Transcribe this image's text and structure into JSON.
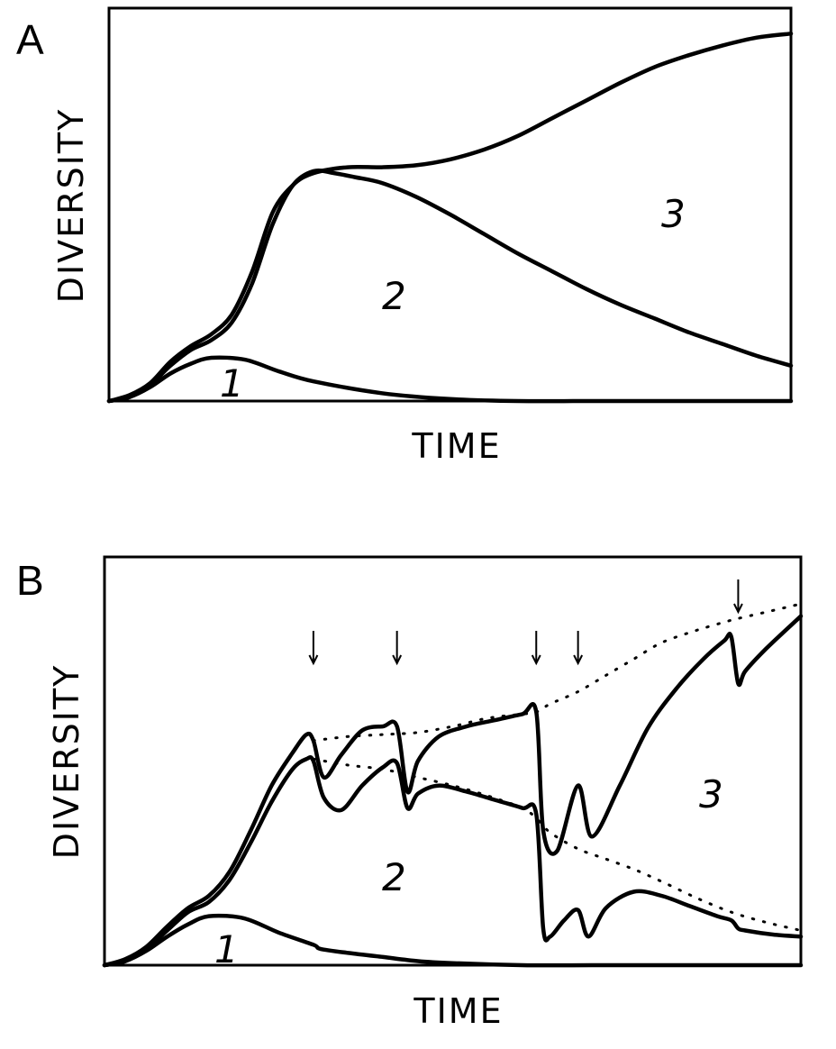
{
  "chart_data": [
    {
      "type": "line",
      "panel": "A",
      "xlabel": "TIME",
      "ylabel": "DIVERSITY",
      "xlim": [
        0,
        100
      ],
      "ylim": [
        0,
        100
      ],
      "grid": false,
      "region_labels": [
        "1",
        "2",
        "3"
      ],
      "series": [
        {
          "x": [
            0,
            3,
            6,
            9,
            12,
            15,
            20,
            25,
            30,
            40,
            50,
            60,
            70,
            80,
            90,
            100
          ],
          "values": [
            0,
            1,
            3.5,
            7,
            9.5,
            11,
            10.5,
            7.5,
            5,
            2,
            0.5,
            0,
            0,
            0,
            0,
            0
          ]
        },
        {
          "x": [
            0,
            3,
            6,
            9,
            12,
            15,
            18,
            21,
            24,
            27,
            30,
            33,
            36,
            40,
            45,
            50,
            55,
            60,
            65,
            70,
            75,
            80,
            85,
            90,
            95,
            100
          ],
          "values": [
            0,
            1,
            4,
            9,
            13,
            15.5,
            20,
            30,
            45,
            55,
            58.5,
            58,
            57,
            55.5,
            52,
            47.5,
            42.5,
            37.5,
            33,
            28.5,
            24.5,
            21,
            17.5,
            14.5,
            11.5,
            9
          ]
        },
        {
          "x": [
            0,
            3,
            6,
            9,
            12,
            15,
            18,
            21,
            24,
            27,
            30,
            35,
            40,
            45,
            50,
            55,
            60,
            65,
            70,
            75,
            80,
            85,
            90,
            95,
            100
          ],
          "values": [
            0,
            1.5,
            4.5,
            10,
            14,
            17,
            22,
            33,
            48,
            55,
            58,
            59.5,
            59.5,
            60,
            61.5,
            64,
            67.5,
            72,
            76.5,
            81,
            85,
            88,
            90.5,
            92.5,
            93.5
          ]
        }
      ]
    },
    {
      "type": "line",
      "panel": "B",
      "xlabel": "TIME",
      "ylabel": "DIVERSITY",
      "xlim": [
        0,
        100
      ],
      "ylim": [
        0,
        100
      ],
      "grid": false,
      "region_labels": [
        "1",
        "2",
        "3"
      ],
      "arrows_at_x": [
        30,
        42,
        62,
        68,
        91
      ],
      "series": [
        {
          "x": [
            0,
            3,
            6,
            9,
            12,
            15,
            20,
            25,
            30,
            31,
            35,
            40,
            45,
            50,
            60,
            70,
            80,
            90,
            100
          ],
          "values": [
            0,
            1,
            3.5,
            7,
            10,
            12,
            11.5,
            8,
            5,
            4,
            3,
            2,
            1,
            0.5,
            0,
            0,
            0,
            0,
            0
          ]
        },
        {
          "x": [
            0,
            3,
            6,
            9,
            12,
            15,
            18,
            21,
            24,
            27,
            29,
            30,
            31.5,
            34,
            37,
            40,
            42,
            43.5,
            45,
            48,
            52,
            56,
            60,
            62,
            63,
            64,
            66,
            68,
            69.5,
            72,
            76,
            80,
            84,
            88,
            90,
            91,
            92,
            96,
            100
          ],
          "values": [
            0,
            1,
            4,
            8.5,
            13,
            15.5,
            21,
            30,
            40,
            48,
            50.5,
            50,
            41,
            38,
            44,
            48.5,
            49.5,
            38.5,
            42,
            44,
            42.5,
            40.5,
            38.5,
            37,
            9,
            7,
            11,
            13.5,
            7,
            14,
            18,
            17,
            14.5,
            12,
            11,
            9,
            8.5,
            7.5,
            7
          ]
        },
        {
          "x": [
            0,
            3,
            6,
            9,
            12,
            15,
            18,
            21,
            24,
            27,
            29,
            30,
            31.5,
            34,
            37,
            40,
            42,
            43.5,
            45,
            48,
            52,
            56,
            60,
            62,
            63,
            65,
            68,
            70,
            74,
            78,
            82,
            86,
            89,
            90,
            91,
            92,
            95,
            100
          ],
          "values": [
            0,
            1.5,
            4.5,
            9.5,
            14,
            17,
            23,
            33,
            44,
            52,
            56.5,
            55,
            46,
            51.5,
            57.5,
            58.5,
            58.5,
            42.5,
            50,
            56,
            58.5,
            60,
            61.5,
            62,
            33,
            28,
            44,
            31.5,
            44,
            58,
            67.5,
            75,
            79.5,
            80.5,
            69,
            72,
            77.5,
            85.5
          ]
        }
      ],
      "dotted_series": [
        {
          "x": [
            30,
            35,
            40,
            45,
            50,
            55,
            60,
            62,
            64,
            68,
            72,
            76,
            80,
            85,
            90,
            95,
            100
          ],
          "values": [
            55,
            56,
            56.5,
            57,
            58.5,
            60.5,
            61.5,
            62,
            64,
            67,
            71,
            75,
            79,
            82,
            84.5,
            86.5,
            88.5
          ]
        },
        {
          "x": [
            30,
            35,
            40,
            45,
            50,
            55,
            60,
            62,
            64,
            68,
            72,
            76,
            80,
            85,
            90,
            95,
            100
          ],
          "values": [
            50.5,
            49,
            48,
            46,
            44,
            41.5,
            38.5,
            36,
            32.5,
            28.5,
            26,
            23.5,
            20.5,
            16.5,
            13,
            10.5,
            8.5
          ]
        }
      ]
    }
  ],
  "panels": {
    "a": {
      "letter": "A",
      "xlabel": "TIME",
      "ylabel": "DIVERSITY",
      "regions": [
        "1",
        "2",
        "3"
      ]
    },
    "b": {
      "letter": "B",
      "xlabel": "TIME",
      "ylabel": "DIVERSITY",
      "regions": [
        "1",
        "2",
        "3"
      ]
    }
  }
}
